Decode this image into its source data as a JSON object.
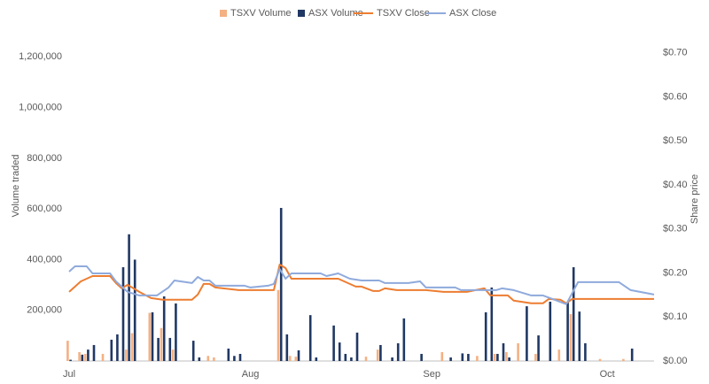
{
  "chart_data": {
    "type": "combo",
    "x_label": "",
    "y_label": "Volume traded",
    "y2_label": "Share price",
    "legend": "top",
    "grid": false,
    "xlim": [
      0,
      100
    ],
    "xticks": [
      {
        "value": 0,
        "label": "Jul"
      },
      {
        "value": 31,
        "label": "Aug"
      },
      {
        "value": 62,
        "label": "Sep"
      },
      {
        "value": 92,
        "label": "Oct"
      }
    ],
    "ylim": [
      0,
      1400000
    ],
    "yticks": [
      {
        "value": 200000,
        "label": "200,000"
      },
      {
        "value": 400000,
        "label": "400,000"
      },
      {
        "value": 600000,
        "label": "600,000"
      },
      {
        "value": 800000,
        "label": "800,000"
      },
      {
        "value": 1000000,
        "label": "1,000,000"
      },
      {
        "value": 1200000,
        "label": "1,200,000"
      }
    ],
    "y2lim": [
      0,
      0.8
    ],
    "y2ticks": [
      {
        "value": 0,
        "label": "$0.00"
      },
      {
        "value": 0.1,
        "label": "$0.10"
      },
      {
        "value": 0.2,
        "label": "$0.20"
      },
      {
        "value": 0.3,
        "label": "$0.30"
      },
      {
        "value": 0.4,
        "label": "$0.40"
      },
      {
        "value": 0.5,
        "label": "$0.50"
      },
      {
        "value": 0.6,
        "label": "$0.60"
      },
      {
        "value": 0.7,
        "label": "$0.70"
      }
    ],
    "series": [
      {
        "name": "TSXV Volume",
        "type": "bar",
        "color": "#f4b183",
        "x": [
          0,
          2,
          3,
          6,
          10,
          11,
          14,
          16,
          18,
          24,
          25,
          36,
          38,
          39,
          51,
          53,
          64,
          70,
          73,
          75,
          77,
          80,
          84,
          86,
          91,
          95
        ],
        "values": [
          80000,
          35000,
          28000,
          28000,
          45000,
          110000,
          190000,
          130000,
          45000,
          20000,
          14000,
          280000,
          20000,
          17000,
          17000,
          45000,
          35000,
          20000,
          28000,
          35000,
          70000,
          28000,
          45000,
          185000,
          8000,
          8000
        ]
      },
      {
        "name": "ASX Volume",
        "type": "bar",
        "color": "#203864",
        "x": [
          0,
          2,
          3,
          4,
          7,
          8,
          9,
          10,
          11,
          14,
          15,
          16,
          17,
          18,
          21,
          22,
          27,
          28,
          29,
          36,
          37,
          39,
          41,
          42,
          45,
          46,
          47,
          48,
          49,
          53,
          55,
          56,
          57,
          60,
          65,
          67,
          68,
          71,
          72,
          73,
          74,
          75,
          78,
          80,
          82,
          85,
          86,
          87,
          88,
          96
        ],
        "values": [
          5000,
          25000,
          45000,
          63000,
          84000,
          105000,
          370000,
          500000,
          400000,
          192000,
          91000,
          255000,
          91000,
          227000,
          80000,
          14000,
          49000,
          20000,
          28000,
          604000,
          105000,
          42000,
          181000,
          14000,
          140000,
          73000,
          28000,
          14000,
          112000,
          63000,
          14000,
          70000,
          168000,
          28000,
          14000,
          30000,
          28000,
          192000,
          290000,
          28000,
          70000,
          14000,
          216000,
          101000,
          234000,
          230000,
          370000,
          195000,
          70000,
          49000
        ]
      },
      {
        "name": "TSXV Close",
        "type": "line",
        "axis": "y2",
        "color": "#ed7d31",
        "x": [
          0,
          2,
          4,
          7,
          8,
          9,
          10,
          12,
          14,
          16,
          21,
          22,
          23,
          24,
          25,
          29,
          35,
          36,
          37,
          38,
          46,
          49,
          50,
          52,
          53,
          54,
          56,
          61,
          64,
          68,
          71,
          72,
          75,
          76,
          79,
          81,
          82,
          84,
          85,
          86,
          91,
          100
        ],
        "values": [
          0.157,
          0.181,
          0.193,
          0.193,
          0.177,
          0.165,
          0.173,
          0.157,
          0.143,
          0.139,
          0.139,
          0.151,
          0.175,
          0.175,
          0.167,
          0.161,
          0.161,
          0.219,
          0.211,
          0.187,
          0.187,
          0.169,
          0.169,
          0.159,
          0.159,
          0.165,
          0.161,
          0.161,
          0.157,
          0.157,
          0.165,
          0.149,
          0.149,
          0.137,
          0.131,
          0.131,
          0.141,
          0.139,
          0.131,
          0.141,
          0.141,
          0.141
        ]
      },
      {
        "name": "ASX Close",
        "type": "line",
        "axis": "y2",
        "color": "#8faadc",
        "x": [
          0,
          1,
          3,
          4,
          7,
          8,
          10,
          12,
          15,
          17,
          18,
          21,
          22,
          23,
          24,
          25,
          30,
          31,
          34,
          35,
          36,
          37,
          38,
          43,
          44,
          46,
          48,
          50,
          53,
          54,
          58,
          60,
          61,
          66,
          67,
          73,
          74,
          76,
          79,
          81,
          83,
          85,
          87,
          94,
          96,
          100
        ],
        "values": [
          0.203,
          0.215,
          0.215,
          0.199,
          0.199,
          0.181,
          0.157,
          0.149,
          0.149,
          0.167,
          0.183,
          0.177,
          0.191,
          0.183,
          0.183,
          0.171,
          0.171,
          0.167,
          0.171,
          0.175,
          0.209,
          0.187,
          0.199,
          0.199,
          0.193,
          0.199,
          0.187,
          0.183,
          0.183,
          0.177,
          0.177,
          0.181,
          0.167,
          0.167,
          0.161,
          0.161,
          0.165,
          0.161,
          0.149,
          0.149,
          0.139,
          0.129,
          0.179,
          0.179,
          0.161,
          0.151
        ]
      }
    ]
  }
}
